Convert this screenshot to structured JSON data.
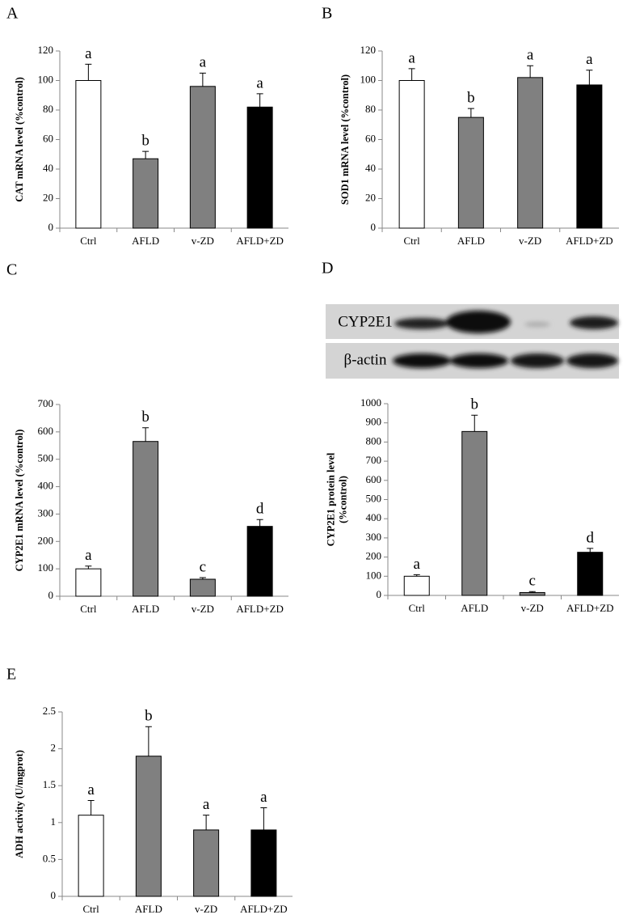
{
  "chart_data": [
    {
      "type": "bar",
      "panel": "A",
      "ylabel": [
        "CAT mRNA level (%control)"
      ],
      "categories": [
        "Ctrl",
        "AFLD",
        "v-ZD",
        "AFLD+ZD"
      ],
      "values": [
        100,
        47,
        96,
        82
      ],
      "errors": [
        11,
        5,
        9,
        9
      ],
      "annotations": [
        "a",
        "b",
        "a",
        "a"
      ],
      "colors": [
        "#ffffff",
        "#808080",
        "#808080",
        "#000000"
      ],
      "ylim": [
        0,
        120
      ],
      "yticks": [
        0,
        20,
        40,
        60,
        80,
        100,
        120
      ]
    },
    {
      "type": "bar",
      "panel": "B",
      "ylabel": [
        "SOD1 mRNA level (%control)"
      ],
      "categories": [
        "Ctrl",
        "AFLD",
        "v-ZD",
        "AFLD+ZD"
      ],
      "values": [
        100,
        75,
        102,
        97
      ],
      "errors": [
        8,
        6,
        8,
        10
      ],
      "annotations": [
        "a",
        "b",
        "a",
        "a"
      ],
      "colors": [
        "#ffffff",
        "#808080",
        "#808080",
        "#000000"
      ],
      "ylim": [
        0,
        120
      ],
      "yticks": [
        0,
        20,
        40,
        60,
        80,
        100,
        120
      ]
    },
    {
      "type": "bar",
      "panel": "C",
      "ylabel": [
        "CYP2E1 mRNA level (%control)"
      ],
      "categories": [
        "Ctrl",
        "AFLD",
        "v-ZD",
        "AFLD+ZD"
      ],
      "values": [
        100,
        565,
        62,
        255
      ],
      "errors": [
        10,
        50,
        6,
        25
      ],
      "annotations": [
        "a",
        "b",
        "c",
        "d"
      ],
      "colors": [
        "#ffffff",
        "#808080",
        "#808080",
        "#000000"
      ],
      "ylim": [
        0,
        700
      ],
      "yticks": [
        0,
        100,
        200,
        300,
        400,
        500,
        600,
        700
      ]
    },
    {
      "type": "bar",
      "panel": "D",
      "blot_labels": [
        "CYP2E1",
        "β-actin"
      ],
      "ylabel": [
        "CYP2E1 protein level",
        "(%control)"
      ],
      "categories": [
        "Ctrl",
        "AFLD",
        "v-ZD",
        "AFLD+ZD"
      ],
      "values": [
        100,
        855,
        15,
        225
      ],
      "errors": [
        8,
        85,
        5,
        20
      ],
      "annotations": [
        "a",
        "b",
        "c",
        "d"
      ],
      "colors": [
        "#ffffff",
        "#808080",
        "#808080",
        "#000000"
      ],
      "ylim": [
        0,
        1000
      ],
      "yticks": [
        0,
        100,
        200,
        300,
        400,
        500,
        600,
        700,
        800,
        900,
        1000
      ]
    },
    {
      "type": "bar",
      "panel": "E",
      "ylabel": [
        "ADH activity (U/mgprot)"
      ],
      "categories": [
        "Ctrl",
        "AFLD",
        "v-ZD",
        "AFLD+ZD"
      ],
      "values": [
        1.1,
        1.9,
        0.9,
        0.9
      ],
      "errors": [
        0.2,
        0.4,
        0.2,
        0.3
      ],
      "annotations": [
        "a",
        "b",
        "a",
        "a"
      ],
      "colors": [
        "#ffffff",
        "#808080",
        "#808080",
        "#000000"
      ],
      "ylim": [
        0,
        2.5
      ],
      "yticks": [
        0,
        0.5,
        1,
        1.5,
        2,
        2.5
      ]
    }
  ]
}
